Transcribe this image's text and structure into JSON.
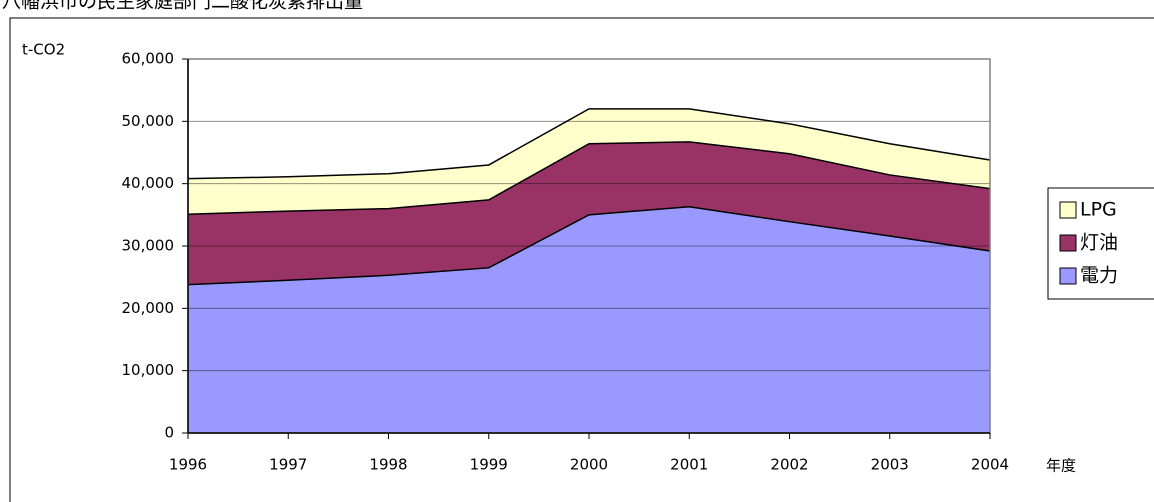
{
  "chart_data": {
    "type": "stacked_area",
    "title": "八幡浜市の民生家庭部門二酸化炭素排出量",
    "y_label": "t-CO2",
    "x_label": "年度",
    "categories": [
      "1996",
      "1997",
      "1998",
      "1999",
      "2000",
      "2001",
      "2002",
      "2003",
      "2004"
    ],
    "series": [
      {
        "name": "電力",
        "color": "#9999ff",
        "values": [
          23800,
          24500,
          25300,
          26500,
          35000,
          36300,
          33900,
          31600,
          29200
        ]
      },
      {
        "name": "灯油",
        "color": "#993366",
        "values": [
          11300,
          11100,
          10700,
          10900,
          11400,
          10400,
          10900,
          9800,
          10000
        ]
      },
      {
        "name": "LPG",
        "color": "#ffffcc",
        "values": [
          5700,
          5500,
          5600,
          5600,
          5600,
          5300,
          4800,
          5000,
          4600
        ]
      }
    ],
    "ylim": [
      0,
      60000
    ],
    "yticks": [
      0,
      {
        "value": 10000,
        "label": "10,000"
      },
      {
        "value": 20000,
        "label": "20,000"
      },
      {
        "value": 30000,
        "label": "30,000"
      },
      {
        "value": 40000,
        "label": "40,000"
      },
      {
        "value": 50000,
        "label": "50,000"
      },
      {
        "value": 60000,
        "label": "60,000"
      }
    ],
    "grid": true,
    "legend": "right"
  }
}
